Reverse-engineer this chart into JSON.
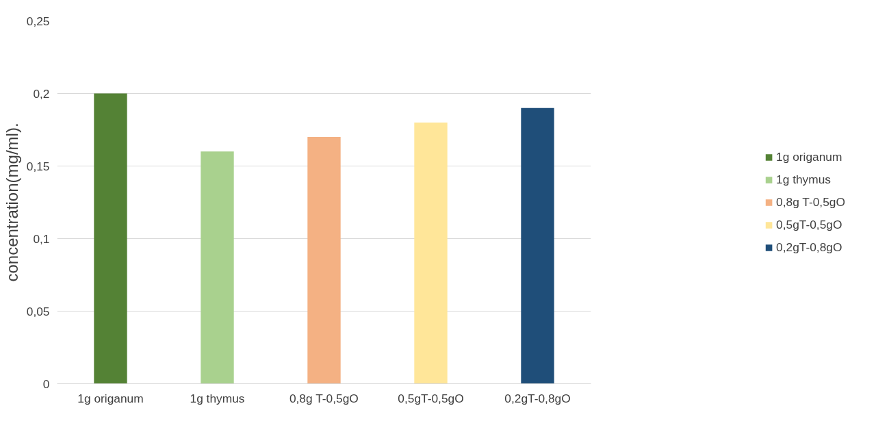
{
  "chart_data": {
    "type": "bar",
    "ylabel": "concentration(mg/ml).",
    "categories": [
      "1g origanum",
      "1g thymus",
      "0,8g T-0,5gO",
      "0,5gT-0,5gO",
      "0,2gT-0,8gO"
    ],
    "series": [
      {
        "name": "1g origanum",
        "color": "#548235",
        "values": [
          0.2,
          null,
          null,
          null,
          null
        ]
      },
      {
        "name": "1g thymus",
        "color": "#a9d18e",
        "values": [
          null,
          0.16,
          null,
          null,
          null
        ]
      },
      {
        "name": "0,8g T-0,5gO",
        "color": "#f4b183",
        "values": [
          null,
          null,
          0.17,
          null,
          null
        ]
      },
      {
        "name": "0,5gT-0,5gO",
        "color": "#ffe699",
        "values": [
          null,
          null,
          null,
          0.18,
          null
        ]
      },
      {
        "name": "0,2gT-0,8gO",
        "color": "#1f4e79",
        "values": [
          null,
          null,
          null,
          null,
          0.19
        ]
      }
    ],
    "ylim": [
      0,
      0.25
    ],
    "yticks": [
      {
        "value": 0,
        "label": "0"
      },
      {
        "value": 0.05,
        "label": "0,05"
      },
      {
        "value": 0.1,
        "label": "0,1"
      },
      {
        "value": 0.15,
        "label": "0,15"
      },
      {
        "value": 0.2,
        "label": "0,2"
      },
      {
        "value": 0.25,
        "label": "0,25"
      }
    ],
    "grid": "y",
    "legend": "right"
  }
}
